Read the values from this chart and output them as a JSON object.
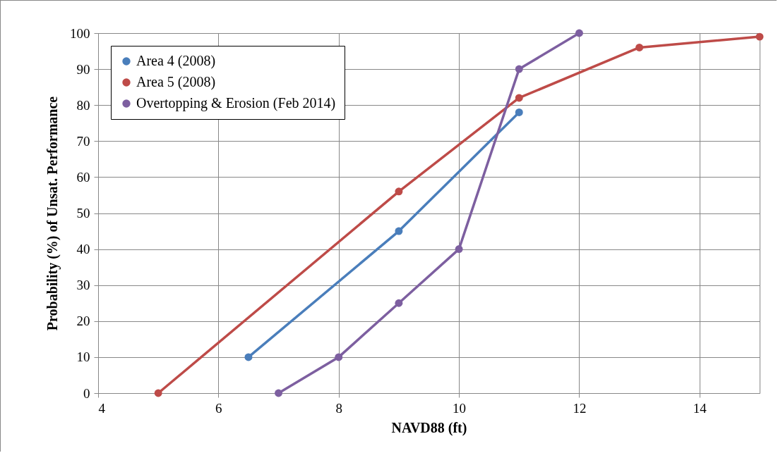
{
  "chart_data": {
    "type": "line",
    "xlabel": "NAVD88 (ft)",
    "ylabel": "Probability (%) of Unsat. Performance",
    "xlim": [
      4,
      15
    ],
    "xticks": [
      4,
      6,
      8,
      10,
      12,
      14
    ],
    "ylim": [
      0,
      100
    ],
    "yticks": [
      0,
      10,
      20,
      30,
      40,
      50,
      60,
      70,
      80,
      90,
      100
    ],
    "grid": true,
    "legend": "top left",
    "marker": "circle",
    "line_style": "solid",
    "series": [
      {
        "name": "Area 4 (2008)",
        "color": "#4a7ebb",
        "x": [
          6.5,
          9,
          11
        ],
        "values": [
          10,
          45,
          78
        ]
      },
      {
        "name": "Area 5 (2008)",
        "color": "#be4b48",
        "x": [
          5,
          9,
          11,
          13,
          15
        ],
        "values": [
          0,
          56,
          82,
          96,
          99
        ]
      },
      {
        "name": "Overtopping & Erosion (Feb 2014)",
        "color": "#7d5fa0",
        "x": [
          7,
          8,
          9,
          10,
          11,
          12
        ],
        "values": [
          0,
          10,
          25,
          40,
          90,
          100
        ]
      }
    ]
  }
}
